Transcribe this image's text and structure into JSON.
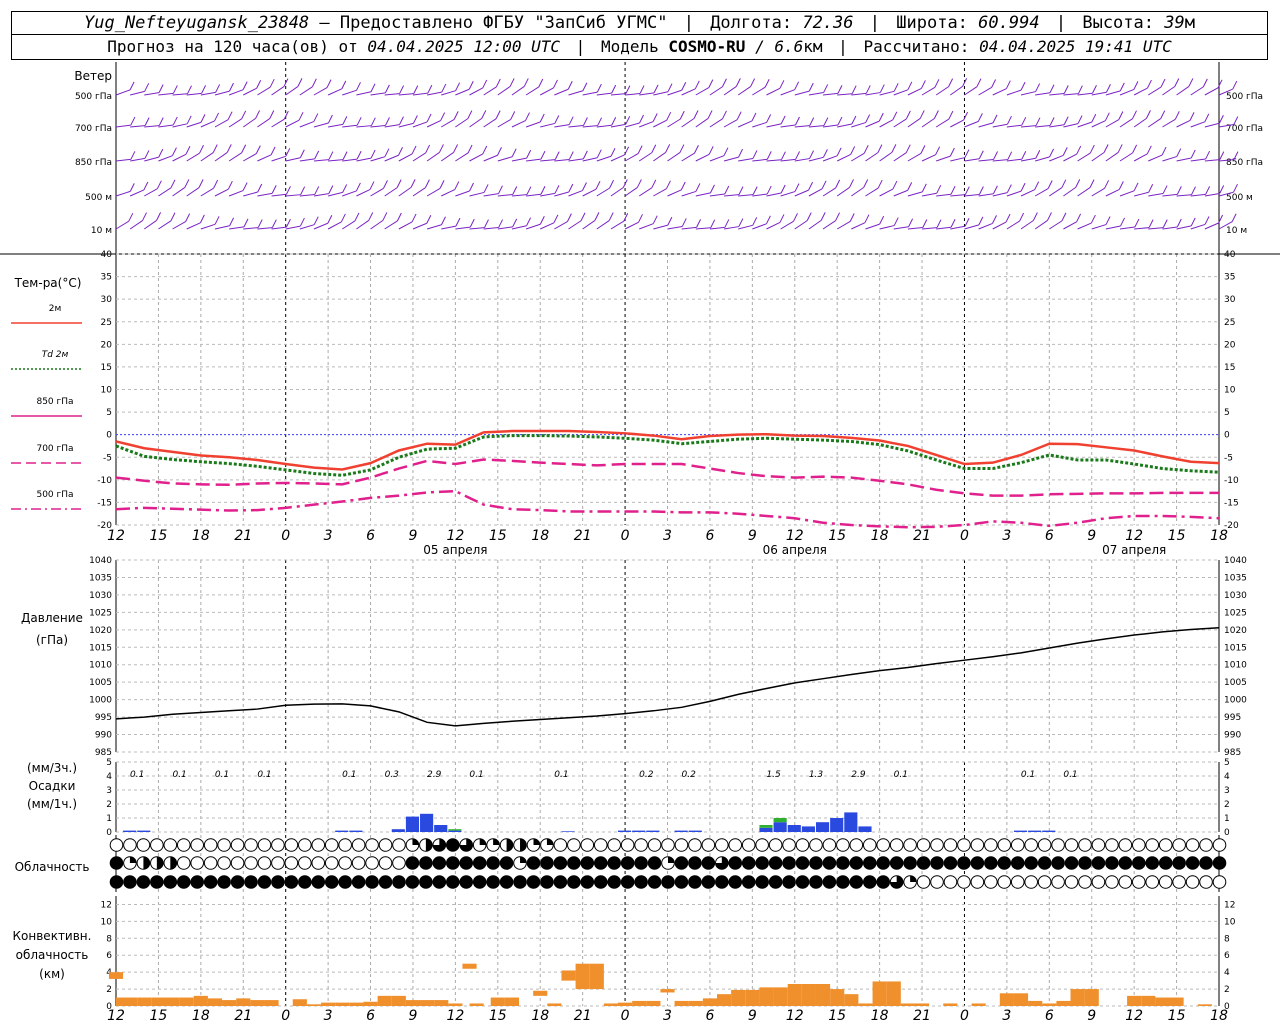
{
  "header": {
    "station": "Yug_Nefteyugansk_23848",
    "provider_prefix": "– Предоставлено ФГБУ",
    "provider_name": "\"ЗапСиб УГМС\"",
    "lon_label": "Долгота:",
    "lon_value": "72.36",
    "lat_label": "Широта:",
    "lat_value": "60.994",
    "alt_label": "Высота:",
    "alt_value": "39",
    "alt_unit": "м",
    "forecast_prefix": "Прогноз на 120 часа(ов) от",
    "forecast_from": "04.04.2025 12:00 UTC",
    "model_label": "Модель",
    "model_name": "COSMO-RU",
    "model_sep": "/",
    "model_res_value": "6.6",
    "model_res_unit": "км",
    "computed_label": "Рассчитано:",
    "computed_value": "04.04.2025 19:41 UTC"
  },
  "panels": {
    "wind": {
      "title": "Ветер",
      "levels": [
        "500 гПа",
        "700 гПа",
        "850 гПа",
        "500 м",
        "10 м"
      ],
      "color": "#7a22c4"
    },
    "temperature": {
      "title": "Тем-ра(°C)",
      "legend": [
        {
          "label": "2м",
          "color": "#f04030",
          "style": "solid"
        },
        {
          "label": "Td 2м",
          "color": "#1a7a1a",
          "style": "dotted"
        },
        {
          "label": "850 гПа",
          "color": "#e0208c",
          "style": "solid"
        },
        {
          "label": "700 гПа",
          "color": "#e0208c",
          "style": "dashed"
        },
        {
          "label": "500 гПа",
          "color": "#e0208c",
          "style": "dashdot"
        }
      ],
      "yticks": [
        "40",
        "35",
        "30",
        "25",
        "20",
        "15",
        "10",
        "5",
        "0",
        "-5",
        "-10",
        "-15",
        "-20"
      ]
    },
    "pressure": {
      "title": "Давление",
      "unit": "(гПа)",
      "yticks": [
        "1040",
        "1035",
        "1030",
        "1025",
        "1020",
        "1015",
        "1010",
        "1005",
        "1000",
        "995",
        "990",
        "985"
      ]
    },
    "precip": {
      "unit_top": "(мм/3ч.)",
      "title": "Осадки",
      "unit_bottom": "(мм/1ч.)",
      "yticks": [
        "5",
        "4",
        "3",
        "2",
        "1",
        "0"
      ],
      "totals": [
        {
          "h": 1.5,
          "v": "0.1"
        },
        {
          "h": 4.5,
          "v": "0.1"
        },
        {
          "h": 7.5,
          "v": "0.1"
        },
        {
          "h": 10.5,
          "v": "0.1"
        },
        {
          "h": 16.5,
          "v": "0.1"
        },
        {
          "h": 19.5,
          "v": "0.3"
        },
        {
          "h": 22.5,
          "v": "2.9"
        },
        {
          "h": 25.5,
          "v": "0.1"
        },
        {
          "h": 31.5,
          "v": "0.1"
        },
        {
          "h": 37.5,
          "v": "0.2"
        },
        {
          "h": 40.5,
          "v": "0.2"
        },
        {
          "h": 46.5,
          "v": "1.5"
        },
        {
          "h": 49.5,
          "v": "1.3"
        },
        {
          "h": 52.5,
          "v": "2.9"
        },
        {
          "h": 55.5,
          "v": "0.1"
        },
        {
          "h": 64.5,
          "v": "0.1"
        },
        {
          "h": 67.5,
          "v": "0.1"
        }
      ]
    },
    "clouds": {
      "title": "Облачность"
    },
    "convective": {
      "title_1": "Конвективн.",
      "title_2": "облачность",
      "unit": "(км)",
      "yticks": [
        "12",
        "10",
        "8",
        "6",
        "4",
        "2",
        "0"
      ],
      "color": "#f0902c"
    }
  },
  "x_axis": {
    "hour_labels": [
      "12",
      "15",
      "18",
      "21",
      "0",
      "3",
      "6",
      "9",
      "12",
      "15",
      "18",
      "21",
      "0",
      "3",
      "6",
      "9",
      "12",
      "15",
      "18",
      "21",
      "0",
      "3",
      "6",
      "9",
      "12",
      "15",
      "18"
    ],
    "dates": [
      {
        "h": 24,
        "label": "05 апреля"
      },
      {
        "h": 48,
        "label": "06 апреля"
      },
      {
        "h": 72,
        "label": "07 апреля"
      }
    ]
  },
  "chart_data": [
    {
      "type": "line",
      "title": "Тем-ра(°C)",
      "ylim": [
        -20,
        40
      ],
      "x_hours_from_start": [
        0,
        2,
        4,
        6,
        8,
        10,
        12,
        14,
        16,
        18,
        20,
        22,
        24,
        26,
        28,
        30,
        32,
        34,
        36,
        38,
        40,
        42,
        44,
        46,
        48,
        50,
        52,
        54,
        56,
        58,
        60,
        62,
        64,
        66,
        68,
        70,
        72,
        74,
        76,
        78
      ],
      "series": [
        {
          "name": "2м",
          "values": [
            -1.5,
            -3,
            -3.8,
            -4.6,
            -5,
            -5.6,
            -6.5,
            -7.3,
            -7.7,
            -6.3,
            -3.5,
            -2,
            -2.2,
            0.5,
            0.8,
            0.8,
            0.8,
            0.6,
            0.3,
            -0.2,
            -1,
            -0.3,
            0,
            0.1,
            -0.2,
            -0.3,
            -0.7,
            -1.3,
            -2.5,
            -4.5,
            -6.5,
            -6.2,
            -4.5,
            -2,
            -2.1,
            -2.8,
            -3.5,
            -4.8,
            -6,
            -6.3
          ]
        },
        {
          "name": "Td 2м",
          "values": [
            -2.5,
            -4.8,
            -5.5,
            -6,
            -6.4,
            -7,
            -7.8,
            -8.6,
            -9,
            -7.8,
            -5,
            -3.2,
            -3,
            -0.5,
            -0.2,
            -0.2,
            -0.3,
            -0.5,
            -0.8,
            -1.2,
            -2,
            -1.5,
            -1,
            -0.8,
            -1,
            -1.2,
            -1.5,
            -2.2,
            -3.6,
            -5.6,
            -7.5,
            -7.5,
            -6.2,
            -4.5,
            -5.6,
            -5.6,
            -6.5,
            -7.5,
            -8,
            -8.3
          ]
        },
        {
          "name": "700 гПа",
          "values": [
            -9.5,
            -10.2,
            -10.8,
            -11,
            -11.1,
            -10.8,
            -10.7,
            -10.8,
            -11,
            -9.5,
            -7.5,
            -5.8,
            -6.5,
            -5.5,
            -5.8,
            -6.2,
            -6.5,
            -6.8,
            -6.5,
            -6.5,
            -6.5,
            -7.5,
            -8.5,
            -9.2,
            -9.5,
            -9.3,
            -9.5,
            -10.2,
            -11,
            -12.2,
            -13,
            -13.5,
            -13.5,
            -13.2,
            -13.1,
            -13,
            -13,
            -12.9,
            -12.9,
            -12.9
          ]
        },
        {
          "name": "500 гПа",
          "values": [
            -16.5,
            -16.2,
            -16.4,
            -16.6,
            -16.8,
            -16.7,
            -16.2,
            -15.5,
            -14.8,
            -14,
            -13.5,
            -12.8,
            -12.5,
            -15.5,
            -16.5,
            -16.7,
            -17,
            -17,
            -17,
            -17,
            -17.2,
            -17.2,
            -17.5,
            -18,
            -18.5,
            -19.5,
            -20,
            -20.3,
            -20.5,
            -20.4,
            -20,
            -19.2,
            -19.5,
            -20.2,
            -19.5,
            -18.5,
            -18,
            -18,
            -18.2,
            -18.5
          ]
        }
      ]
    },
    {
      "type": "line",
      "title": "Давление",
      "ylabel": "(гПа)",
      "ylim": [
        985,
        1040
      ],
      "x_hours_from_start": [
        0,
        2,
        4,
        6,
        8,
        10,
        12,
        14,
        16,
        18,
        20,
        22,
        24,
        26,
        28,
        30,
        32,
        34,
        36,
        38,
        40,
        42,
        44,
        46,
        48,
        50,
        52,
        54,
        56,
        58,
        60,
        62,
        64,
        66,
        68,
        70,
        72,
        74,
        76,
        78
      ],
      "series": [
        {
          "name": "Давление",
          "values": [
            994.5,
            995,
            995.8,
            996.3,
            996.8,
            997.3,
            998.4,
            998.7,
            998.8,
            998.2,
            996.5,
            993.5,
            992.5,
            993.2,
            993.8,
            994.3,
            994.8,
            995.3,
            996,
            996.8,
            997.8,
            999.5,
            1001.5,
            1003.2,
            1004.8,
            1006,
            1007.2,
            1008.3,
            1009.2,
            1010.3,
            1011.3,
            1012.3,
            1013.4,
            1014.8,
            1016.2,
            1017.4,
            1018.5,
            1019.4,
            1020.1,
            1020.6
          ]
        }
      ]
    },
    {
      "type": "bar",
      "title": "Осадки",
      "ylabel": "(мм/1ч.)",
      "ylim": [
        0,
        5
      ],
      "series": [
        {
          "name": "rain",
          "color": "#2a4adf",
          "points": [
            [
              1,
              0.1
            ],
            [
              2,
              0.1
            ],
            [
              16,
              0.1
            ],
            [
              17,
              0.1
            ],
            [
              20,
              0.2
            ],
            [
              21,
              1.1
            ],
            [
              22,
              1.3
            ],
            [
              23,
              0.5
            ],
            [
              24,
              0.1
            ],
            [
              32,
              0.05
            ],
            [
              36,
              0.1
            ],
            [
              37,
              0.1
            ],
            [
              38,
              0.1
            ],
            [
              40,
              0.1
            ],
            [
              41,
              0.1
            ],
            [
              46,
              0.3
            ],
            [
              47,
              0.7
            ],
            [
              48,
              0.5
            ],
            [
              49,
              0.4
            ],
            [
              50,
              0.7
            ],
            [
              51,
              1.0
            ],
            [
              52,
              1.4
            ],
            [
              53,
              0.4
            ],
            [
              64,
              0.1
            ],
            [
              65,
              0.1
            ],
            [
              66,
              0.1
            ]
          ]
        },
        {
          "name": "snow",
          "color": "#30b030",
          "points": [
            [
              46,
              0.2
            ],
            [
              47,
              0.3
            ],
            [
              24,
              0.1
            ]
          ]
        }
      ]
    },
    {
      "type": "table",
      "title": "Облачность",
      "rows": [
        "00000000000000000000001234311221100000000000000000000000000000000000000000000000000",
        "41222000000000000000004444444414444444444144434444444444444444444444444444444444444",
        "44444444444444444444444444444444444444444444444444444444443100000000000000000000000"
      ]
    },
    {
      "type": "bar",
      "title": "Конвективн. облачность",
      "ylabel": "(км)",
      "ylim": [
        0,
        13
      ],
      "series": [
        {
          "name": "Конвективная облачность",
          "color": "#f0902c",
          "segments": [
            [
              0,
              3.2,
              4.0
            ],
            [
              0.5,
              0,
              1.0
            ],
            [
              1,
              0,
              1.0
            ],
            [
              2,
              0,
              1.0
            ],
            [
              3,
              0,
              1.0
            ],
            [
              4,
              0,
              1.0
            ],
            [
              5,
              0,
              1.0
            ],
            [
              6,
              0,
              1.2
            ],
            [
              7,
              0,
              0.9
            ],
            [
              8,
              0,
              0.7
            ],
            [
              9,
              0,
              0.9
            ],
            [
              10,
              0,
              0.7
            ],
            [
              11,
              0,
              0.7
            ],
            [
              13,
              0,
              0.8
            ],
            [
              14,
              0,
              0.2
            ],
            [
              15,
              0,
              0.4
            ],
            [
              16,
              0,
              0.4
            ],
            [
              17,
              0,
              0.4
            ],
            [
              18,
              0,
              0.5
            ],
            [
              19,
              0,
              1.2
            ],
            [
              20,
              0,
              1.2
            ],
            [
              21,
              0,
              0.7
            ],
            [
              22,
              0,
              0.7
            ],
            [
              23,
              0,
              0.7
            ],
            [
              24,
              0,
              0.3
            ],
            [
              25,
              4.4,
              5.0
            ],
            [
              25.5,
              0,
              0.3
            ],
            [
              27,
              0,
              1.0
            ],
            [
              28,
              0,
              1.0
            ],
            [
              30,
              1.2,
              1.8
            ],
            [
              31,
              0,
              0.3
            ],
            [
              32,
              3.0,
              4.2
            ],
            [
              33,
              2.0,
              5.0
            ],
            [
              34,
              2.0,
              5.0
            ],
            [
              35,
              0,
              0.3
            ],
            [
              36,
              0,
              0.4
            ],
            [
              37,
              0,
              0.6
            ],
            [
              38,
              0,
              0.6
            ],
            [
              39,
              1.6,
              2.0
            ],
            [
              40,
              0,
              0.6
            ],
            [
              41,
              0,
              0.6
            ],
            [
              42,
              0,
              0.9
            ],
            [
              43,
              0,
              1.4
            ],
            [
              44,
              0,
              1.9
            ],
            [
              45,
              0,
              1.9
            ],
            [
              46,
              0,
              2.2
            ],
            [
              47,
              0,
              2.2
            ],
            [
              48,
              0,
              2.6
            ],
            [
              49,
              0,
              2.6
            ],
            [
              50,
              0,
              2.6
            ],
            [
              51,
              0,
              2.0
            ],
            [
              52,
              0,
              1.4
            ],
            [
              53,
              0,
              0.3
            ],
            [
              54,
              0,
              2.9
            ],
            [
              55,
              0,
              2.9
            ],
            [
              56,
              0,
              0.3
            ],
            [
              57,
              0,
              0.3
            ],
            [
              59,
              0,
              0.3
            ],
            [
              61,
              0,
              0.3
            ],
            [
              63,
              0,
              1.5
            ],
            [
              64,
              0,
              1.5
            ],
            [
              65,
              0,
              0.6
            ],
            [
              66,
              0,
              0.3
            ],
            [
              67,
              0,
              0.6
            ],
            [
              68,
              0,
              2.0
            ],
            [
              69,
              0,
              2.0
            ],
            [
              72,
              0,
              1.2
            ],
            [
              73,
              0,
              1.2
            ],
            [
              74,
              0,
              1.0
            ],
            [
              75,
              0,
              1.0
            ],
            [
              77,
              0,
              0.2
            ]
          ]
        }
      ]
    }
  ]
}
